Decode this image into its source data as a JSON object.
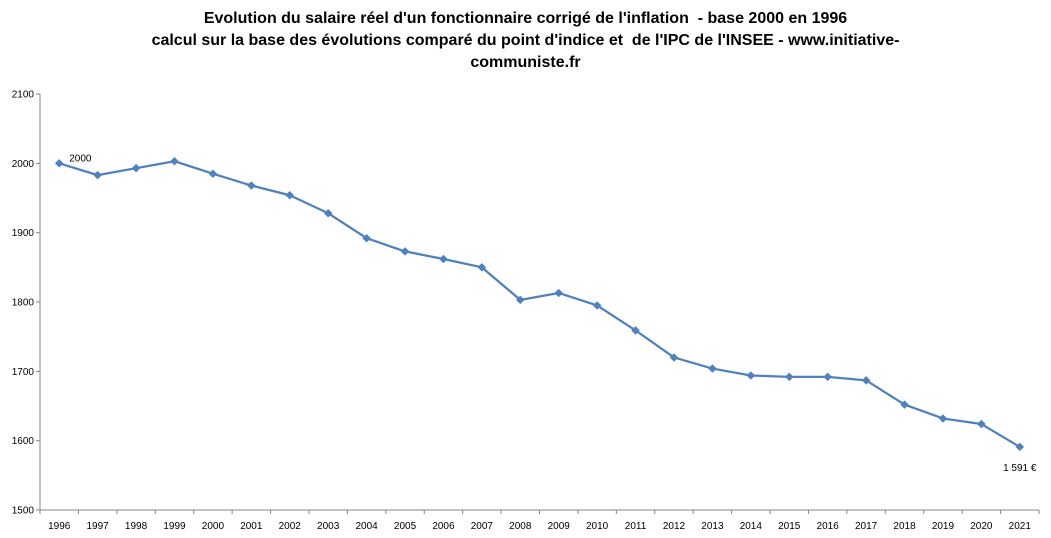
{
  "chart_data": {
    "type": "line",
    "title_lines": [
      "Evolution du salaire réel d'un fonctionnaire corrigé de l'inflation  - base 2000 en 1996",
      "calcul sur la base des évolutions comparé du point d'indice et  de l'IPC de l'INSEE - www.initiative-",
      "communiste.fr"
    ],
    "xlabel": "",
    "ylabel": "",
    "categories": [
      "1996",
      "1997",
      "1998",
      "1999",
      "2000",
      "2001",
      "2002",
      "2003",
      "2004",
      "2005",
      "2006",
      "2007",
      "2008",
      "2009",
      "2010",
      "2011",
      "2012",
      "2013",
      "2014",
      "2015",
      "2016",
      "2017",
      "2018",
      "2019",
      "2020",
      "2021"
    ],
    "series": [
      {
        "values": [
          2000,
          1983,
          1993,
          2003,
          1985,
          1968,
          1954,
          1928,
          1892,
          1873,
          1862,
          1850,
          1803,
          1813,
          1795,
          1759,
          1720,
          1704,
          1694,
          1692,
          1692,
          1687,
          1652,
          1632,
          1624,
          1591
        ]
      }
    ],
    "ylim": [
      1500,
      2100
    ],
    "yticks": [
      "1500",
      "1600",
      "1700",
      "1800",
      "1900",
      "2000",
      "2100"
    ],
    "grid": false,
    "legend": "none",
    "data_labels": [
      {
        "index": 0,
        "text": "2000"
      },
      {
        "index": 25,
        "text": "1 591 €"
      }
    ],
    "colors": {
      "line": "#4f81bd",
      "marker": "#4f81bd",
      "axis": "#868686"
    }
  }
}
